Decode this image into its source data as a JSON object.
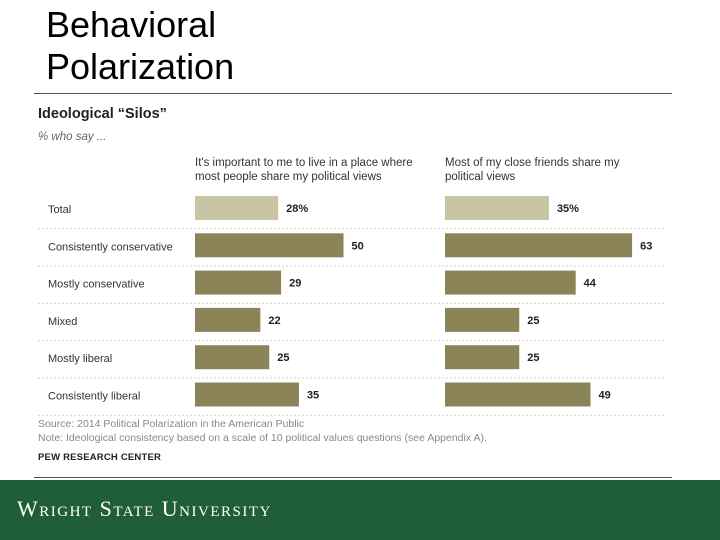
{
  "slide": {
    "title_line1": "Behavioral",
    "title_line2": "Polarization"
  },
  "chart_data": {
    "type": "bar",
    "title": "Ideological “Silos”",
    "subtitle": "% who say ...",
    "categories": [
      "Total",
      "Consistently conservative",
      "Mostly conservative",
      "Mixed",
      "Mostly liberal",
      "Consistently liberal"
    ],
    "series": [
      {
        "name": "It's important to me to live in a place where most people share my political views",
        "header_lines": [
          "It's important to me to live in a place where",
          "most people share my political views"
        ],
        "values": [
          28,
          50,
          29,
          22,
          25,
          35
        ],
        "labels": [
          "28%",
          "50",
          "29",
          "22",
          "25",
          "35"
        ]
      },
      {
        "name": "Most of my close friends share my political views",
        "header_lines": [
          "Most of my close friends share my",
          "political views"
        ],
        "values": [
          35,
          63,
          44,
          25,
          25,
          49
        ],
        "labels": [
          "35%",
          "63",
          "44",
          "25",
          "25",
          "49"
        ]
      }
    ],
    "colors": {
      "total": "#c9c4a6",
      "group": "#8c8459",
      "gridline": "#d0d0d0"
    },
    "grid": true
  },
  "notes": {
    "source": "Source: 2014 Political Polarization in the American Public",
    "note": "Note: Ideological consistency based on a scale of 10 political values questions (see Appendix A).",
    "credit": "PEW RESEARCH CENTER"
  },
  "footer": {
    "brand": "Wright State University",
    "color": "#1f5e37"
  }
}
